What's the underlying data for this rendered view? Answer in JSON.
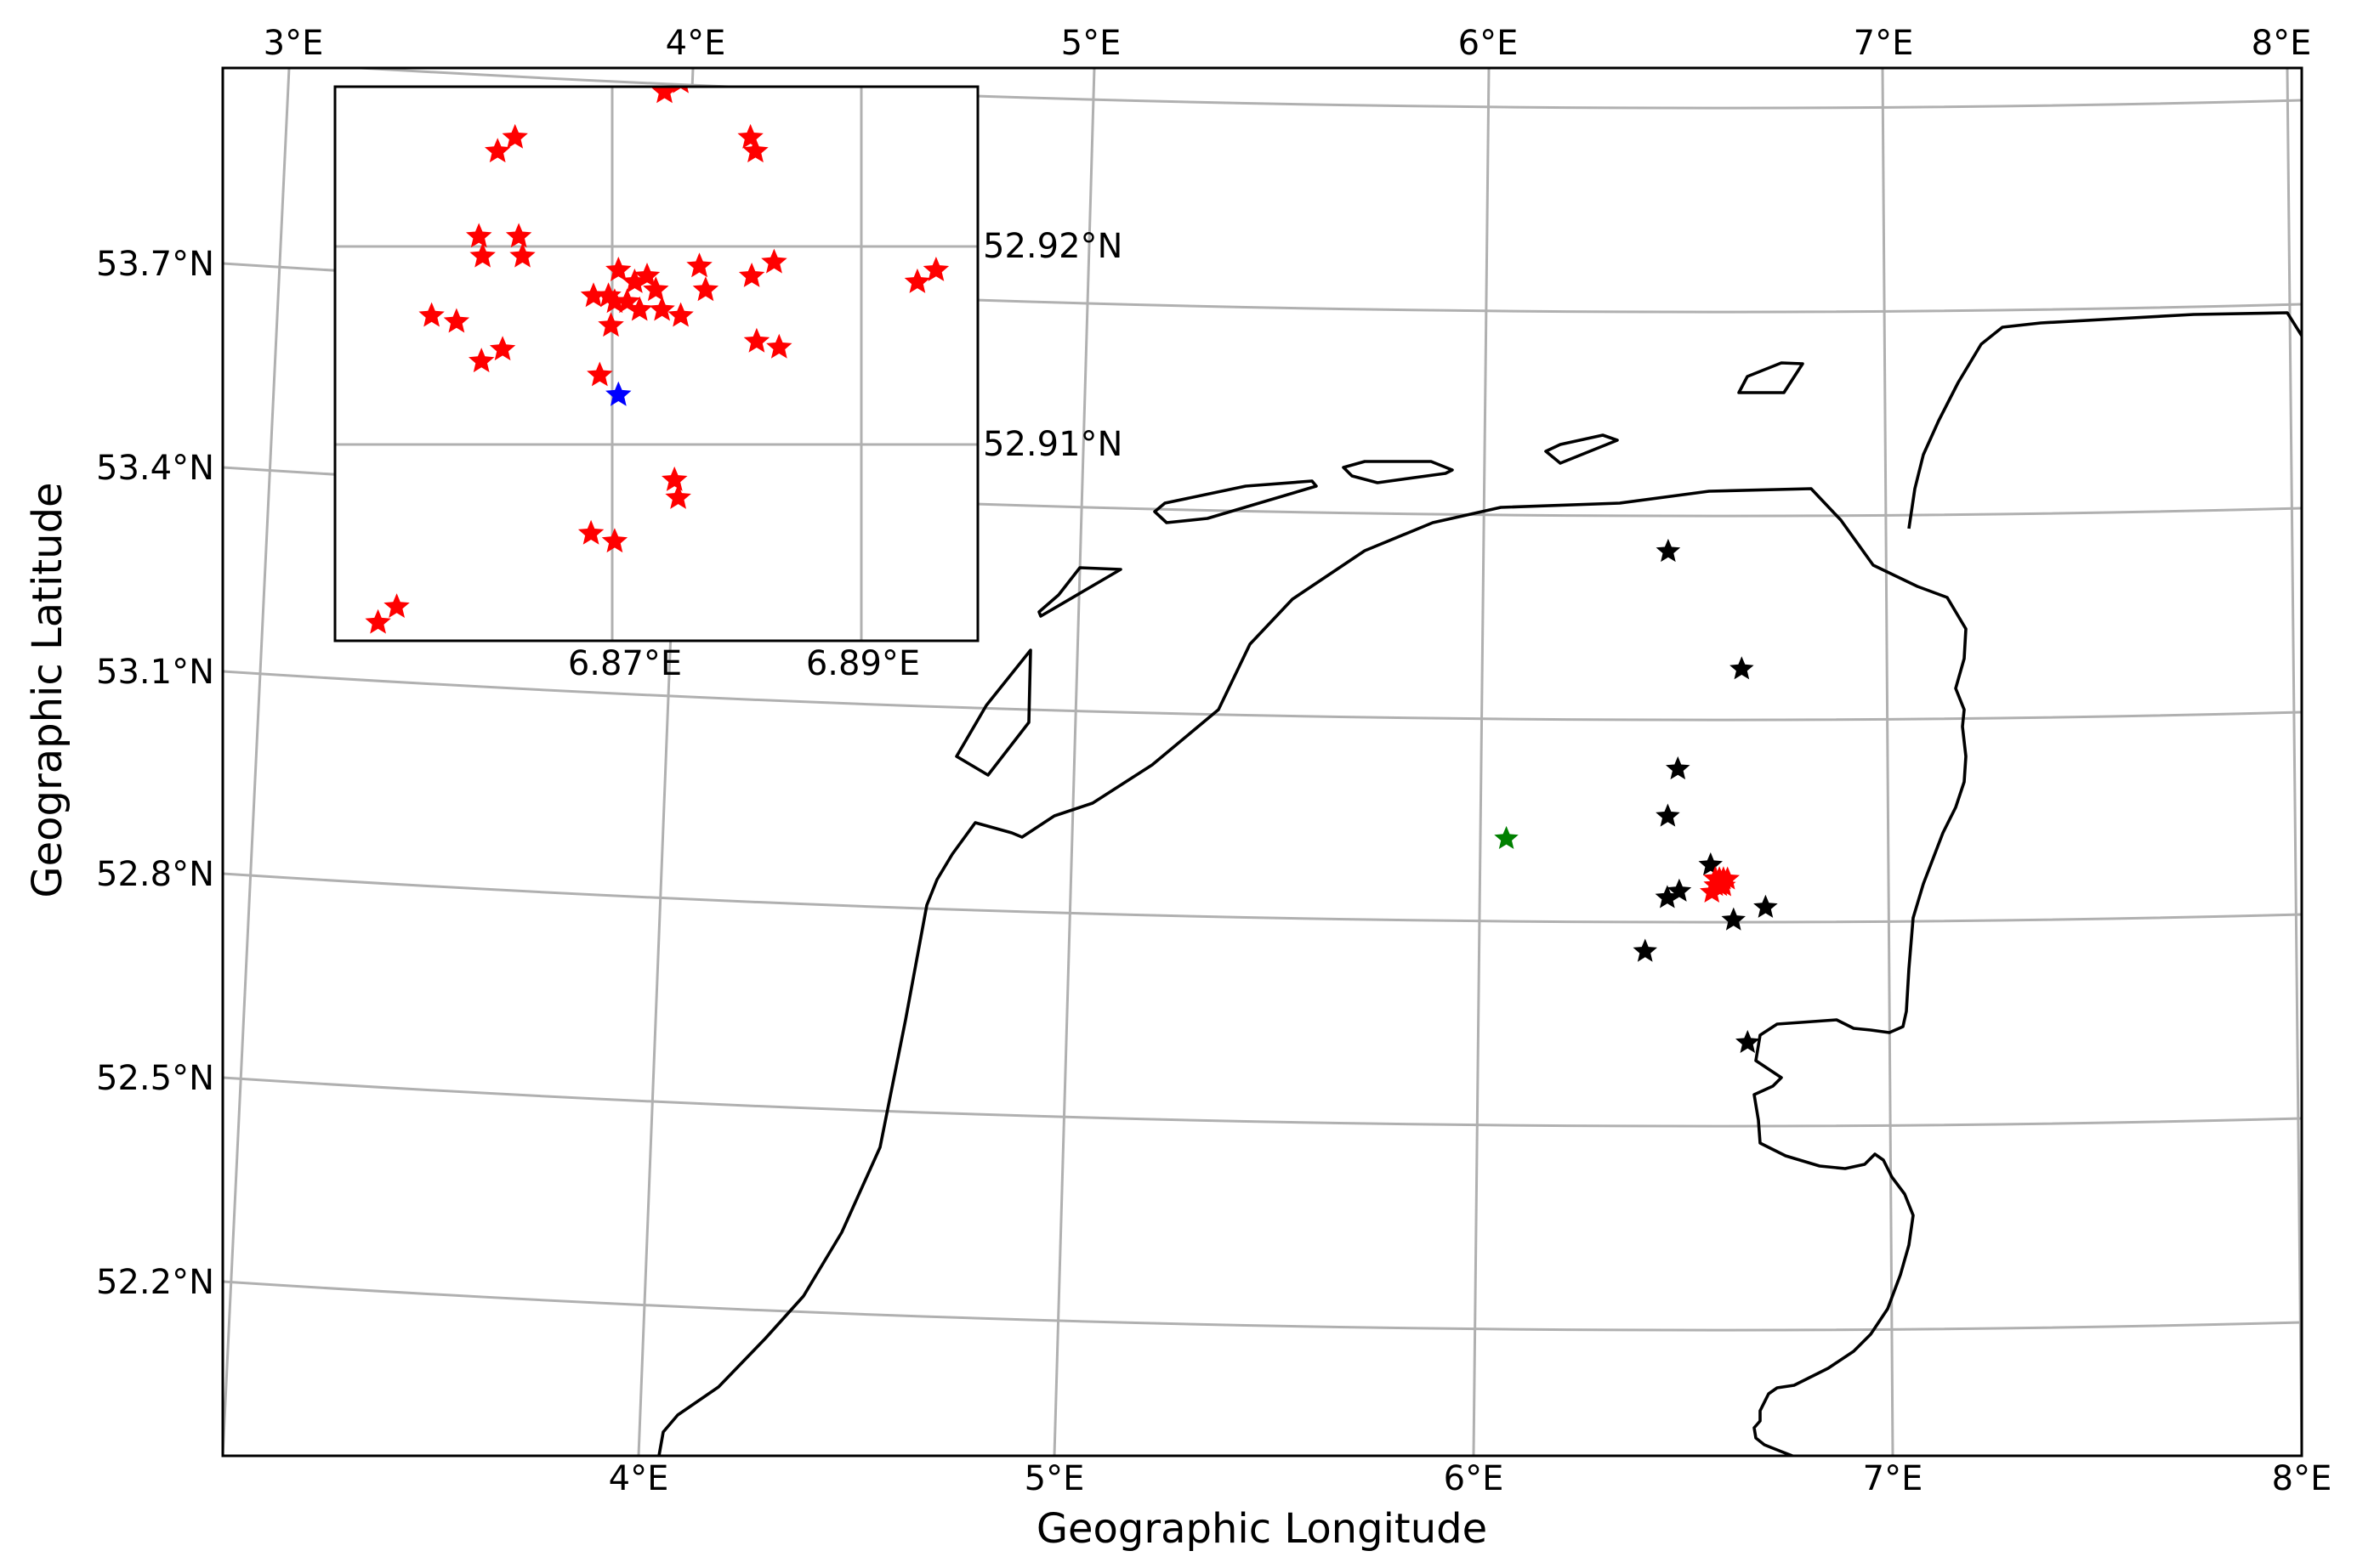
{
  "main_map": {
    "xlabel": "Geographic Longitude",
    "ylabel": "Geographic Latitude",
    "top_lon_ticks": [
      "3°E",
      "4°E",
      "5°E",
      "6°E",
      "7°E",
      "8°E"
    ],
    "bottom_lon_ticks": [
      "4°E",
      "5°E",
      "6°E",
      "7°E",
      "8°E"
    ],
    "lat_ticks": [
      "53.7°N",
      "53.4°N",
      "53.1°N",
      "52.8°N",
      "52.5°N",
      "52.2°N"
    ],
    "grid": true,
    "projection": "conic"
  },
  "inset_map": {
    "lon_ticks": [
      "6.87°E",
      "6.89°E"
    ],
    "lat_ticks": [
      "52.92°N",
      "52.91°N"
    ],
    "placement": "top-left",
    "grid": true
  },
  "colors": {
    "red_events": "#ff0000",
    "black_events": "#000000",
    "green_event": "#008000",
    "blue_event": "#0000ff",
    "coastline": "#000000",
    "grid": "#b0b0b0"
  },
  "chart_data": {
    "type": "scatter",
    "marker": "star",
    "main_series": [
      {
        "color": "black",
        "points": [
          {
            "lon": 6.78,
            "lat": 53.32
          },
          {
            "lon": 6.95,
            "lat": 53.15
          },
          {
            "lon": 6.78,
            "lat": 53.0
          },
          {
            "lon": 6.75,
            "lat": 52.93
          },
          {
            "lon": 6.85,
            "lat": 52.86
          },
          {
            "lon": 6.74,
            "lat": 52.81
          },
          {
            "lon": 6.77,
            "lat": 52.82
          },
          {
            "lon": 6.98,
            "lat": 52.8
          },
          {
            "lon": 6.9,
            "lat": 52.78
          },
          {
            "lon": 6.68,
            "lat": 52.73
          },
          {
            "lon": 6.92,
            "lat": 52.6
          }
        ]
      },
      {
        "color": "green",
        "points": [
          {
            "lon": 6.35,
            "lat": 52.89
          }
        ]
      },
      {
        "color": "red",
        "points": [
          {
            "lon": 6.86,
            "lat": 52.84
          },
          {
            "lon": 6.87,
            "lat": 52.84
          },
          {
            "lon": 6.88,
            "lat": 52.83
          },
          {
            "lon": 6.86,
            "lat": 52.83
          },
          {
            "lon": 6.87,
            "lat": 52.83
          },
          {
            "lon": 6.88,
            "lat": 52.84
          },
          {
            "lon": 6.85,
            "lat": 52.82
          },
          {
            "lon": 6.89,
            "lat": 52.84
          }
        ]
      }
    ],
    "inset_series": [
      {
        "color": "red",
        "points": [
          {
            "lon": 6.8672,
            "lat": 52.93
          },
          {
            "lon": 6.8755,
            "lat": 52.9283
          },
          {
            "lon": 6.8742,
            "lat": 52.9278
          },
          {
            "lon": 6.8811,
            "lat": 52.9255
          },
          {
            "lon": 6.8815,
            "lat": 52.9248
          },
          {
            "lon": 6.8622,
            "lat": 52.9255
          },
          {
            "lon": 6.8608,
            "lat": 52.9248
          },
          {
            "lon": 6.8593,
            "lat": 52.9205
          },
          {
            "lon": 6.8596,
            "lat": 52.9195
          },
          {
            "lon": 6.8625,
            "lat": 52.9205
          },
          {
            "lon": 6.8628,
            "lat": 52.9195
          },
          {
            "lon": 6.8555,
            "lat": 52.9165
          },
          {
            "lon": 6.8575,
            "lat": 52.9162
          },
          {
            "lon": 6.8595,
            "lat": 52.9142
          },
          {
            "lon": 6.8612,
            "lat": 52.9148
          },
          {
            "lon": 6.8685,
            "lat": 52.9175
          },
          {
            "lon": 6.8697,
            "lat": 52.9175
          },
          {
            "lon": 6.8705,
            "lat": 52.9188
          },
          {
            "lon": 6.8712,
            "lat": 52.9172
          },
          {
            "lon": 6.8718,
            "lat": 52.9182
          },
          {
            "lon": 6.8728,
            "lat": 52.9185
          },
          {
            "lon": 6.8735,
            "lat": 52.9178
          },
          {
            "lon": 6.874,
            "lat": 52.9168
          },
          {
            "lon": 6.8722,
            "lat": 52.9168
          },
          {
            "lon": 6.8702,
            "lat": 52.9172
          },
          {
            "lon": 6.8699,
            "lat": 52.916
          },
          {
            "lon": 6.877,
            "lat": 52.919
          },
          {
            "lon": 6.8775,
            "lat": 52.9178
          },
          {
            "lon": 6.8755,
            "lat": 52.9165
          },
          {
            "lon": 6.8812,
            "lat": 52.9185
          },
          {
            "lon": 6.883,
            "lat": 52.9192
          },
          {
            "lon": 6.8816,
            "lat": 52.9152
          },
          {
            "lon": 6.8834,
            "lat": 52.9149
          },
          {
            "lon": 6.8945,
            "lat": 52.9182
          },
          {
            "lon": 6.896,
            "lat": 52.9188
          },
          {
            "lon": 6.869,
            "lat": 52.9135
          },
          {
            "lon": 6.875,
            "lat": 52.9082
          },
          {
            "lon": 6.8753,
            "lat": 52.9073
          },
          {
            "lon": 6.8683,
            "lat": 52.9055
          },
          {
            "lon": 6.8702,
            "lat": 52.9051
          },
          {
            "lon": 6.8512,
            "lat": 52.901
          },
          {
            "lon": 6.8527,
            "lat": 52.9018
          }
        ]
      },
      {
        "color": "blue",
        "points": [
          {
            "lon": 6.8705,
            "lat": 52.9125
          }
        ]
      }
    ]
  }
}
